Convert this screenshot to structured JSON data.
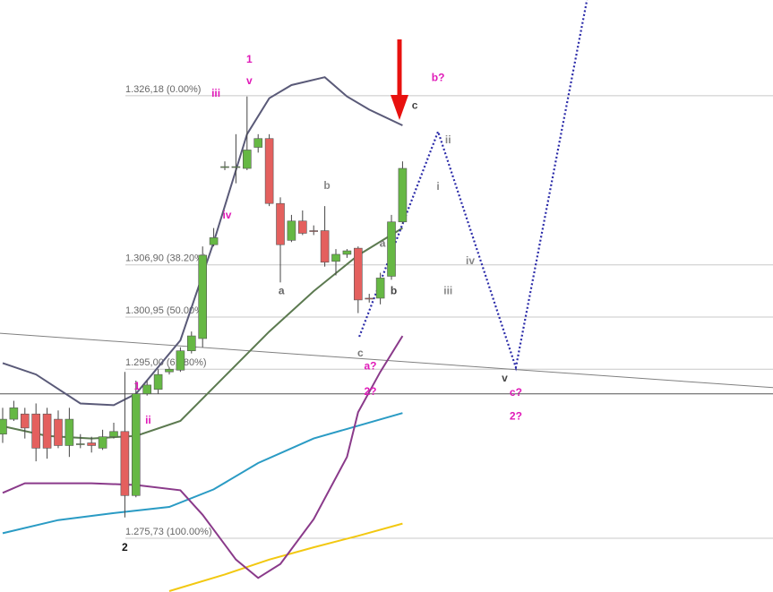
{
  "chart_data": {
    "type": "candlestick",
    "xlim": [
      -0.24,
      69.35
    ],
    "ylim": [
      1.2696,
      1.3371
    ],
    "up_color": "#66b844",
    "down_color": "#e4605e",
    "candles": {
      "open": [
        1.2876,
        1.2893,
        1.2899,
        1.2899,
        1.2899,
        1.2893,
        1.2863,
        1.2864,
        1.2866,
        1.286,
        1.2873,
        1.2879,
        1.2806,
        1.2922,
        1.2927,
        1.2947,
        1.2949,
        1.2971,
        1.2985,
        1.3092,
        1.318,
        1.318,
        1.3179,
        1.3203,
        1.3213,
        1.3139,
        1.3097,
        1.3119,
        1.3108,
        1.3108,
        1.3073,
        1.3081,
        1.3088,
        1.3031,
        1.3031,
        1.3056,
        1.3118
      ],
      "high": [
        1.2906,
        1.2914,
        1.2906,
        1.2911,
        1.2906,
        1.2903,
        1.2906,
        1.2876,
        1.2873,
        1.2881,
        1.2889,
        1.2947,
        1.2937,
        1.2937,
        1.295,
        1.2952,
        1.2975,
        1.2993,
        1.309,
        1.3111,
        1.3187,
        1.3218,
        1.3261,
        1.3218,
        1.3218,
        1.3146,
        1.3126,
        1.3131,
        1.3114,
        1.3136,
        1.3087,
        1.3087,
        1.309,
        1.3036,
        1.306,
        1.3126,
        1.3187
      ],
      "low": [
        1.2866,
        1.2891,
        1.2871,
        1.2845,
        1.2848,
        1.286,
        1.285,
        1.286,
        1.2855,
        1.2858,
        1.2871,
        1.2781,
        1.2804,
        1.292,
        1.2922,
        1.2944,
        1.2947,
        1.2968,
        1.2975,
        1.309,
        1.3177,
        1.3162,
        1.3177,
        1.3197,
        1.3136,
        1.3049,
        1.3095,
        1.3103,
        1.3103,
        1.3067,
        1.3057,
        1.3077,
        1.3014,
        1.3026,
        1.3024,
        1.3052,
        1.3116
      ],
      "close": [
        1.2893,
        1.2906,
        1.2883,
        1.286,
        1.286,
        1.2863,
        1.2893,
        1.2865,
        1.2863,
        1.2873,
        1.2879,
        1.2806,
        1.2922,
        1.2932,
        1.2944,
        1.295,
        1.2971,
        1.2988,
        1.308,
        1.31,
        1.3181,
        1.3181,
        1.32,
        1.3213,
        1.3139,
        1.3092,
        1.3119,
        1.3105,
        1.3107,
        1.3072,
        1.3081,
        1.3085,
        1.3029,
        1.303,
        1.3054,
        1.3118,
        1.3179
      ]
    },
    "series": [
      {
        "color": "#808080",
        "style": "solid",
        "x": [
          -0.24,
          69.35
        ],
        "values": [
          1.2991,
          1.2929
        ]
      },
      {
        "color": "#555555",
        "style": "solid",
        "x": [
          -0.24,
          69.35
        ],
        "values": [
          1.2922,
          1.2922
        ]
      },
      {
        "color": "#2a9bc4",
        "style": "solid",
        "x": [
          0,
          5,
          10,
          15,
          19,
          23,
          28,
          31,
          36
        ],
        "values": [
          1.2763,
          1.2778,
          1.2786,
          1.2793,
          1.2813,
          1.2843,
          1.2871,
          1.2882,
          1.29
        ]
      },
      {
        "color": "#f2c811",
        "style": "solid",
        "x": [
          15,
          20,
          24,
          28,
          32,
          36
        ],
        "values": [
          1.2697,
          1.2716,
          1.2733,
          1.2747,
          1.276,
          1.2774
        ]
      },
      {
        "color": "#5c7a50",
        "style": "solid",
        "x": [
          0,
          4,
          8,
          12,
          16,
          20,
          24,
          28,
          32,
          36
        ],
        "values": [
          1.2885,
          1.2874,
          1.2871,
          1.2874,
          1.2891,
          1.2942,
          1.2993,
          1.3039,
          1.308,
          1.3111
        ]
      },
      {
        "color": "#5a5a78",
        "style": "solid",
        "x": [
          0,
          3,
          7,
          10,
          12,
          16,
          19,
          22,
          24,
          26,
          29,
          31,
          33,
          36
        ],
        "values": [
          1.2957,
          1.2944,
          1.2911,
          1.2909,
          1.2922,
          1.2983,
          1.3095,
          1.3218,
          1.3259,
          1.3274,
          1.3283,
          1.3261,
          1.3246,
          1.3228
        ]
      },
      {
        "color": "#8a3a8a",
        "style": "solid",
        "x": [
          0,
          2,
          8,
          12,
          16,
          18,
          21,
          23,
          25,
          28,
          31,
          32,
          34,
          36
        ],
        "values": [
          1.2809,
          1.282,
          1.282,
          1.2818,
          1.2812,
          1.2784,
          1.2733,
          1.2712,
          1.2728,
          1.2779,
          1.285,
          1.2901,
          1.2947,
          1.2988
        ]
      },
      {
        "color": "#2a2aa8",
        "style": "dotted",
        "x": [
          32.1,
          39.2,
          46.2,
          52.6
        ],
        "values": [
          1.2987,
          1.3221,
          1.2952,
          1.3371
        ]
      }
    ],
    "fib_levels": [
      {
        "value": 1.32618,
        "label": "1.326,18 (0.00%)"
      },
      {
        "value": 1.3069,
        "label": "1.306,90 (38.20%)"
      },
      {
        "value": 1.30095,
        "label": "1.300,95 (50.00%)"
      },
      {
        "value": 1.295,
        "label": "1.295,00 (61.80%)"
      },
      {
        "value": 1.27573,
        "label": "1.275,73 (100.00%)"
      }
    ],
    "annotations": [
      {
        "text": "1",
        "x": 22.2,
        "y": 1.3303,
        "color": "#e01ab8"
      },
      {
        "text": "v",
        "x": 22.2,
        "y": 1.3278,
        "color": "#e01ab8"
      },
      {
        "text": "iii",
        "x": 19.2,
        "y": 1.3264,
        "color": "#e01ab8"
      },
      {
        "text": "iv",
        "x": 20.2,
        "y": 1.3125,
        "color": "#e01ab8"
      },
      {
        "text": "ii",
        "x": 13.1,
        "y": 1.2891,
        "color": "#e01ab8"
      },
      {
        "text": "1",
        "x": 12.1,
        "y": 1.293,
        "color": "#e01ab8"
      },
      {
        "text": "2",
        "x": 11.0,
        "y": 1.2746,
        "color": "#111111"
      },
      {
        "text": "a",
        "x": 25.1,
        "y": 1.3039,
        "color": "#666666"
      },
      {
        "text": "b",
        "x": 29.2,
        "y": 1.3159,
        "color": "#888888"
      },
      {
        "text": "c",
        "x": 37.1,
        "y": 1.325,
        "color": "#444444"
      },
      {
        "text": "b?",
        "x": 39.2,
        "y": 1.3282,
        "color": "#e01ab8"
      },
      {
        "text": "ii",
        "x": 40.1,
        "y": 1.3211,
        "color": "#888888"
      },
      {
        "text": "i",
        "x": 39.2,
        "y": 1.3158,
        "color": "#888888"
      },
      {
        "text": "a",
        "x": 34.2,
        "y": 1.3093,
        "color": "#777777"
      },
      {
        "text": "b",
        "x": 35.2,
        "y": 1.3039,
        "color": "#444444"
      },
      {
        "text": "c",
        "x": 32.2,
        "y": 1.2968,
        "color": "#777777"
      },
      {
        "text": "iv",
        "x": 42.1,
        "y": 1.3073,
        "color": "#888888"
      },
      {
        "text": "iii",
        "x": 40.1,
        "y": 1.3039,
        "color": "#888888"
      },
      {
        "text": "a?",
        "x": 33.1,
        "y": 1.2953,
        "color": "#e01ab8"
      },
      {
        "text": "2?",
        "x": 33.1,
        "y": 1.2924,
        "color": "#e01ab8"
      },
      {
        "text": "v",
        "x": 45.2,
        "y": 1.2939,
        "color": "#444444"
      },
      {
        "text": "c?",
        "x": 46.2,
        "y": 1.2923,
        "color": "#e01ab8"
      },
      {
        "text": "2?",
        "x": 46.2,
        "y": 1.2896,
        "color": "#e01ab8"
      }
    ]
  }
}
